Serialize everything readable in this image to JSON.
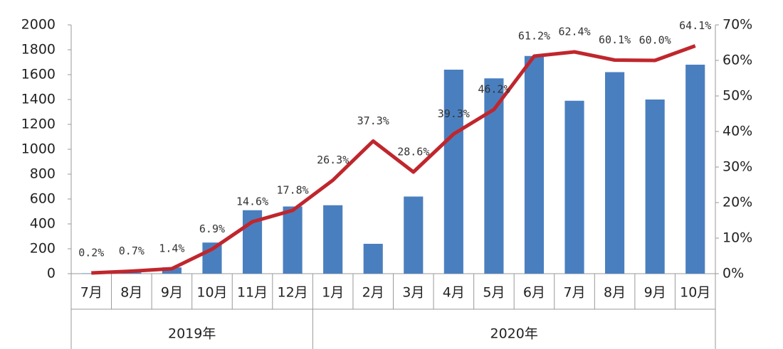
{
  "chart_data": {
    "type": "bar",
    "groups": [
      {
        "name": "2019年",
        "categories": [
          "7月",
          "8月",
          "9月",
          "10月",
          "11月",
          "12月"
        ]
      },
      {
        "name": "2020年",
        "categories": [
          "1月",
          "2月",
          "3月",
          "4月",
          "5月",
          "6月",
          "7月",
          "8月",
          "9月",
          "10月"
        ]
      }
    ],
    "series": [
      {
        "type": "bar",
        "color": "#4a7fbf",
        "values": [
          3,
          10,
          50,
          250,
          510,
          540,
          550,
          240,
          620,
          1640,
          1570,
          1750,
          1390,
          1620,
          1400,
          1680
        ]
      },
      {
        "type": "line",
        "axis": "y2",
        "color": "#c0262d",
        "values": [
          0.2,
          0.7,
          1.4,
          6.9,
          14.6,
          17.8,
          26.3,
          37.3,
          28.6,
          39.3,
          46.2,
          61.2,
          62.4,
          60.1,
          60.0,
          64.1
        ],
        "value_labels": [
          "0.2%",
          "0.7%",
          "1.4%",
          "6.9%",
          "14.6%",
          "17.8%",
          "26.3%",
          "37.3%",
          "28.6%",
          "39.3%",
          "46.2%",
          "61.2%",
          "62.4%",
          "60.1%",
          "60.0%",
          "64.1%"
        ]
      }
    ],
    "ylim": [
      0,
      2000
    ],
    "yticks": [
      0,
      200,
      400,
      600,
      800,
      1000,
      1200,
      1400,
      1600,
      1800,
      2000
    ],
    "y2lim": [
      0,
      70
    ],
    "y2ticks": [
      {
        "value": 0,
        "label": "0%"
      },
      {
        "value": 10,
        "label": "10%"
      },
      {
        "value": 20,
        "label": "20%"
      },
      {
        "value": 30,
        "label": "30%"
      },
      {
        "value": 40,
        "label": "40%"
      },
      {
        "value": 50,
        "label": "50%"
      },
      {
        "value": 60,
        "label": "60%"
      },
      {
        "value": 70,
        "label": "70%"
      }
    ]
  }
}
